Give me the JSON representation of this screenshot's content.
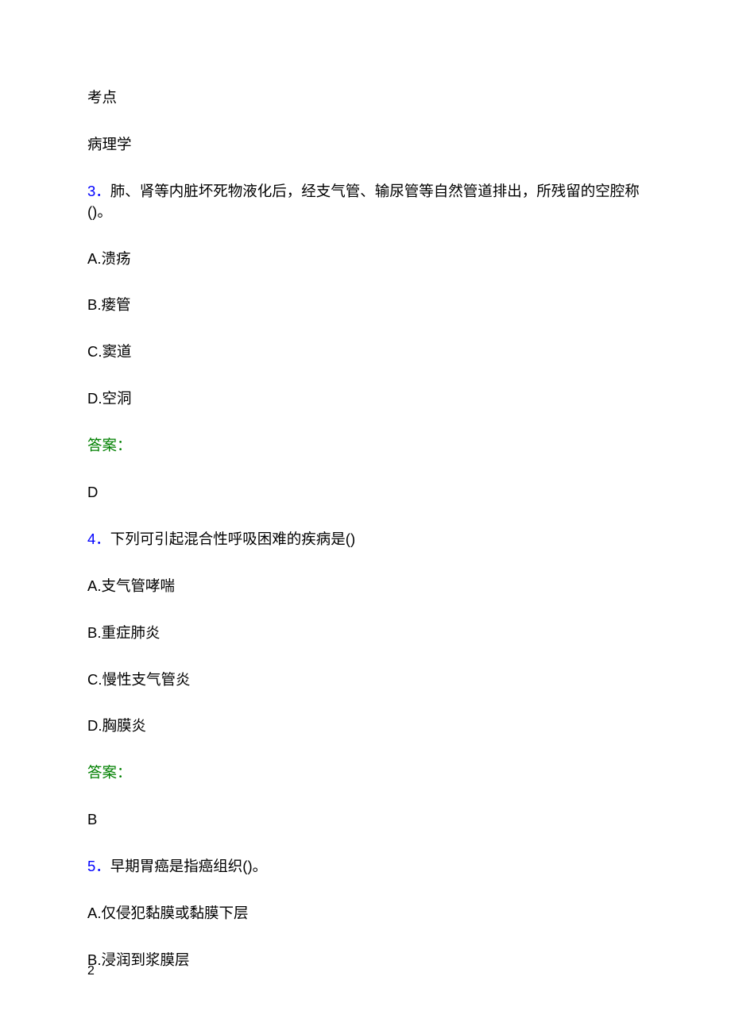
{
  "header": {
    "kaodian_label": "考点",
    "subject": "病理学"
  },
  "questions": [
    {
      "number": "3．",
      "text": "肺、肾等内脏坏死物液化后，经支气管、输尿管等自然管道排出，所残留的空腔称()。",
      "options": [
        "A.溃疡",
        "B.瘘管",
        "C.窦道",
        "D.空洞"
      ],
      "answer_label": "答案：",
      "answer": "D"
    },
    {
      "number": "4．",
      "text": "下列可引起混合性呼吸困难的疾病是()",
      "options": [
        "A.支气管哮喘",
        "B.重症肺炎",
        "C.慢性支气管炎",
        "D.胸膜炎"
      ],
      "answer_label": "答案：",
      "answer": "B"
    },
    {
      "number": "5．",
      "text": "早期胃癌是指癌组织()。",
      "options": [
        "A.仅侵犯黏膜或黏膜下层",
        "B.浸润到浆膜层"
      ],
      "answer_label": "",
      "answer": ""
    }
  ],
  "page_number": "2",
  "colors": {
    "question_number": "#0000ff",
    "answer_label": "#008000",
    "body_text": "#000000",
    "background": "#ffffff"
  },
  "typography": {
    "body_fontsize": 18.5,
    "page_number_fontsize": 16,
    "line_spacing": 33
  }
}
